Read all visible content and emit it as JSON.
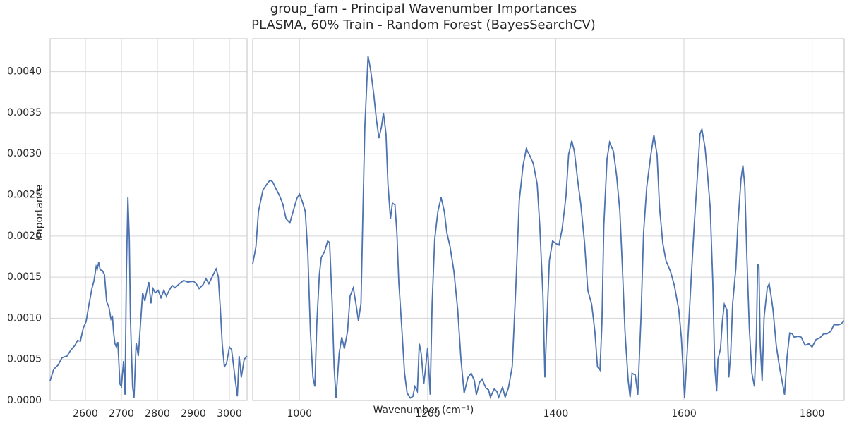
{
  "chart_data": [
    {
      "type": "line",
      "title": "group_fam - Principal Wavenumber Importances",
      "subtitle": "PLASMA, 60% Train - Random Forest (BayesSearchCV)",
      "xlabel": "Wavenumber (cm⁻¹)",
      "ylabel": "Importance",
      "color": "#4c72b0",
      "grid": true,
      "xlim": [
        2502,
        3049
      ],
      "xticks": [
        2600,
        2700,
        2800,
        2900,
        3000
      ],
      "ylim": [
        0,
        0.0044
      ],
      "yticks": [
        {
          "value": 0,
          "label": "0.0000"
        },
        {
          "value": 0.0005,
          "label": "0.0005"
        },
        {
          "value": 0.001,
          "label": "0.0010"
        },
        {
          "value": 0.0015,
          "label": "0.0015"
        },
        {
          "value": 0.002,
          "label": "0.0020"
        },
        {
          "value": 0.0025,
          "label": "0.0025"
        },
        {
          "value": 0.003,
          "label": "0.0030"
        },
        {
          "value": 0.0035,
          "label": "0.0035"
        },
        {
          "value": 0.004,
          "label": "0.0040"
        }
      ],
      "x": [
        2502,
        2512,
        2524,
        2535,
        2549,
        2559,
        2571,
        2578,
        2586,
        2594,
        2602,
        2610,
        2618,
        2624,
        2630,
        2633,
        2637,
        2641,
        2647,
        2653,
        2659,
        2665,
        2671,
        2675,
        2678,
        2682,
        2686,
        2690,
        2696,
        2700,
        2706,
        2710,
        2714,
        2718,
        2722,
        2725,
        2731,
        2735,
        2741,
        2747,
        2753,
        2759,
        2765,
        2771,
        2776,
        2782,
        2788,
        2794,
        2802,
        2810,
        2818,
        2825,
        2833,
        2841,
        2849,
        2861,
        2873,
        2884,
        2900,
        2908,
        2916,
        2927,
        2935,
        2943,
        2955,
        2963,
        2969,
        2975,
        2980,
        2986,
        2992,
        3000,
        3006,
        3014,
        3022,
        3027,
        3033,
        3041,
        3049
      ],
      "values": [
        0.00024,
        0.00038,
        0.00043,
        0.00052,
        0.00054,
        0.00061,
        0.00067,
        0.00073,
        0.00072,
        0.00088,
        0.00096,
        0.00117,
        0.00136,
        0.00146,
        0.00163,
        0.0016,
        0.00168,
        0.00159,
        0.00158,
        0.00153,
        0.0012,
        0.00114,
        0.00099,
        0.00103,
        0.00084,
        0.00069,
        0.00065,
        0.00071,
        0.0002,
        0.00017,
        0.00048,
        7e-05,
        0.0016,
        0.00247,
        0.00196,
        0.001,
        0.00017,
        3e-05,
        0.0007,
        0.00054,
        0.00093,
        0.00131,
        0.00121,
        0.00134,
        0.00144,
        0.00118,
        0.00136,
        0.00131,
        0.00134,
        0.00125,
        0.00134,
        0.00127,
        0.00134,
        0.0014,
        0.00137,
        0.00142,
        0.00146,
        0.00144,
        0.00145,
        0.00142,
        0.00136,
        0.00141,
        0.00148,
        0.00142,
        0.00153,
        0.0016,
        0.00151,
        0.0011,
        0.00069,
        0.00041,
        0.00045,
        0.00065,
        0.00062,
        0.00033,
        5e-05,
        0.00054,
        0.00028,
        0.0005,
        0.00054
      ]
    },
    {
      "type": "line",
      "color": "#4c72b0",
      "xlim": [
        927,
        1850
      ],
      "xticks": [
        1000,
        1200,
        1400,
        1600,
        1800
      ],
      "ylim": [
        0,
        0.0044
      ],
      "x": [
        927,
        932,
        936,
        943,
        949,
        954,
        958,
        963,
        969,
        974,
        979,
        985,
        990,
        996,
        1000,
        1004,
        1009,
        1013,
        1017,
        1021,
        1024,
        1027,
        1031,
        1034,
        1039,
        1044,
        1047,
        1051,
        1054,
        1057,
        1062,
        1066,
        1070,
        1075,
        1079,
        1084,
        1088,
        1092,
        1096,
        1099,
        1102,
        1107,
        1111,
        1116,
        1120,
        1124,
        1128,
        1131,
        1135,
        1138,
        1142,
        1145,
        1149,
        1152,
        1155,
        1160,
        1164,
        1168,
        1173,
        1177,
        1180,
        1184,
        1187,
        1190,
        1194,
        1197,
        1200,
        1204,
        1207,
        1211,
        1216,
        1221,
        1226,
        1230,
        1235,
        1241,
        1247,
        1252,
        1257,
        1263,
        1268,
        1273,
        1276,
        1281,
        1285,
        1291,
        1295,
        1298,
        1304,
        1308,
        1311,
        1317,
        1321,
        1326,
        1332,
        1338,
        1343,
        1349,
        1354,
        1360,
        1365,
        1371,
        1375,
        1380,
        1383,
        1386,
        1390,
        1395,
        1400,
        1405,
        1410,
        1416,
        1420,
        1425,
        1429,
        1434,
        1439,
        1445,
        1450,
        1456,
        1461,
        1465,
        1469,
        1472,
        1475,
        1480,
        1484,
        1490,
        1495,
        1500,
        1504,
        1508,
        1513,
        1516,
        1519,
        1524,
        1528,
        1533,
        1537,
        1542,
        1548,
        1553,
        1558,
        1562,
        1567,
        1572,
        1579,
        1585,
        1592,
        1596,
        1601,
        1605,
        1611,
        1616,
        1621,
        1625,
        1628,
        1633,
        1637,
        1641,
        1645,
        1648,
        1651,
        1653,
        1657,
        1660,
        1663,
        1667,
        1670,
        1673,
        1676,
        1681,
        1684,
        1689,
        1692,
        1695,
        1698,
        1702,
        1706,
        1710,
        1713,
        1715,
        1717,
        1719,
        1722,
        1725,
        1730,
        1733,
        1736,
        1739,
        1744,
        1749,
        1754,
        1757,
        1761,
        1765,
        1769,
        1772,
        1778,
        1783,
        1789,
        1795,
        1800,
        1806,
        1812,
        1818,
        1823,
        1829,
        1834,
        1841,
        1845,
        1850
      ],
      "values": [
        0.00166,
        0.00187,
        0.0023,
        0.00256,
        0.00263,
        0.00268,
        0.00266,
        0.00258,
        0.00249,
        0.00239,
        0.00221,
        0.00216,
        0.0023,
        0.00246,
        0.00251,
        0.00243,
        0.0023,
        0.00179,
        0.00084,
        0.00028,
        0.00017,
        0.00093,
        0.00153,
        0.00174,
        0.00181,
        0.00194,
        0.00192,
        0.00118,
        0.00041,
        3e-05,
        0.00058,
        0.00077,
        0.00063,
        0.00084,
        0.00127,
        0.00137,
        0.00118,
        0.00097,
        0.00118,
        0.0023,
        0.00333,
        0.00419,
        0.00402,
        0.00372,
        0.00342,
        0.00319,
        0.00333,
        0.0035,
        0.00324,
        0.00264,
        0.00221,
        0.0024,
        0.00238,
        0.00204,
        0.00144,
        0.00084,
        0.00033,
        9e-05,
        3e-05,
        5e-05,
        0.00017,
        0.00011,
        0.00069,
        0.00057,
        0.0002,
        0.00041,
        0.00064,
        7e-05,
        0.00118,
        0.00196,
        0.0023,
        0.00247,
        0.0023,
        0.00204,
        0.00187,
        0.00157,
        0.0011,
        0.0005,
        9e-05,
        0.00028,
        0.00033,
        0.00024,
        7e-05,
        0.00022,
        0.00026,
        0.00015,
        0.00013,
        4e-05,
        0.00014,
        0.00011,
        4e-05,
        0.00016,
        4e-05,
        0.00015,
        0.00041,
        0.00144,
        0.00243,
        0.00286,
        0.00306,
        0.00297,
        0.00288,
        0.00263,
        0.00213,
        0.00127,
        0.00028,
        0.00093,
        0.0017,
        0.00194,
        0.00191,
        0.00189,
        0.00209,
        0.00249,
        0.00299,
        0.00316,
        0.00303,
        0.00269,
        0.00239,
        0.00191,
        0.00134,
        0.00117,
        0.00084,
        0.00041,
        0.00037,
        0.00093,
        0.00213,
        0.00294,
        0.00314,
        0.00303,
        0.00273,
        0.0023,
        0.00161,
        0.00084,
        0.00024,
        4e-05,
        0.00033,
        0.00031,
        7e-05,
        0.00101,
        0.00204,
        0.0026,
        0.00297,
        0.00323,
        0.00299,
        0.00234,
        0.00191,
        0.0017,
        0.00157,
        0.0014,
        0.0011,
        0.00076,
        3e-05,
        0.00058,
        0.00144,
        0.00213,
        0.00273,
        0.00324,
        0.0033,
        0.00307,
        0.00273,
        0.00234,
        0.00144,
        0.00041,
        0.00011,
        0.0005,
        0.00063,
        0.00097,
        0.00117,
        0.0011,
        0.00028,
        0.00058,
        0.00118,
        0.00161,
        0.00213,
        0.00269,
        0.00286,
        0.0026,
        0.00179,
        0.00088,
        0.00033,
        0.00017,
        0.00076,
        0.00166,
        0.00163,
        0.00067,
        0.00024,
        0.00101,
        0.00137,
        0.00142,
        0.00127,
        0.0011,
        0.00067,
        0.00041,
        0.0002,
        7e-05,
        0.00054,
        0.00082,
        0.00081,
        0.00077,
        0.00078,
        0.00077,
        0.00067,
        0.00069,
        0.00065,
        0.00074,
        0.00076,
        0.00081,
        0.00081,
        0.00084,
        0.00092,
        0.00092,
        0.00093,
        0.00097
      ]
    }
  ]
}
